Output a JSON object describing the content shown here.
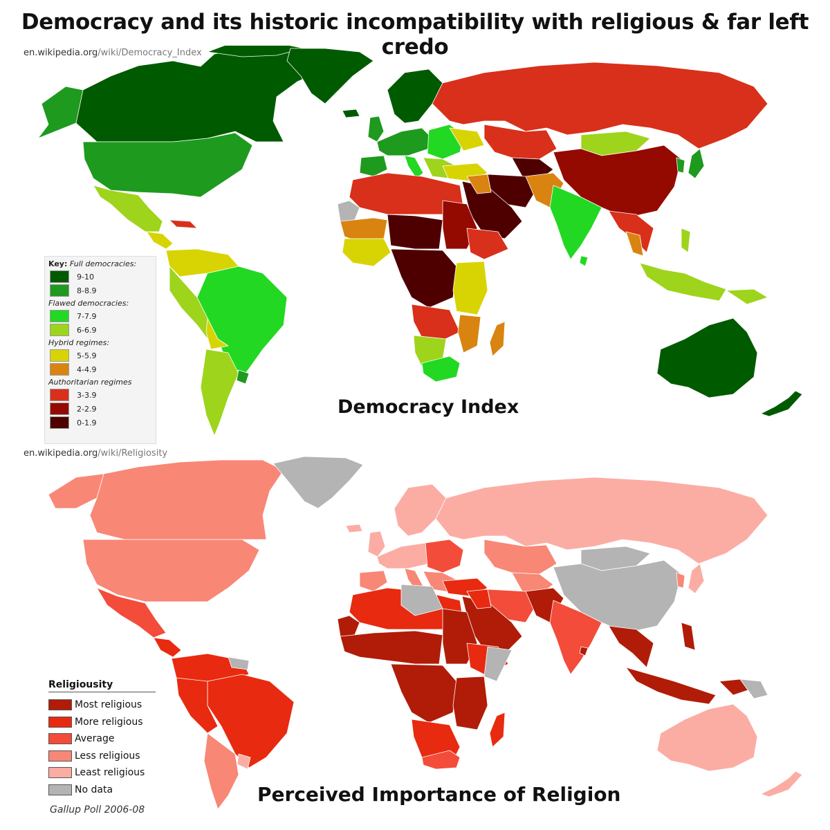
{
  "title": "Democracy and its historic incompatibility with religious & far left credo",
  "map1": {
    "source_domain": "en.wikipedia.org",
    "source_path": "/wiki/Democracy_Index",
    "label": "Democracy Index",
    "legend": {
      "key": "Key:",
      "groups": [
        {
          "name": "Full democracies:",
          "items": [
            {
              "label": "9-10",
              "color": "#005a00"
            },
            {
              "label": "8-8.9",
              "color": "#1e9a1e"
            }
          ]
        },
        {
          "name": "Flawed democracies:",
          "items": [
            {
              "label": "7-7.9",
              "color": "#22d822"
            },
            {
              "label": "6-6.9",
              "color": "#9ed41c"
            }
          ]
        },
        {
          "name": "Hybrid regimes:",
          "items": [
            {
              "label": "5-5.9",
              "color": "#d8d404"
            },
            {
              "label": "4-4.9",
              "color": "#d98410"
            }
          ]
        },
        {
          "name": "Authoritarian regimes",
          "items": [
            {
              "label": "3-3.9",
              "color": "#d8301a"
            },
            {
              "label": "2-2.9",
              "color": "#940a00"
            },
            {
              "label": "0-1.9",
              "color": "#4e0000"
            }
          ]
        }
      ]
    }
  },
  "map2": {
    "source_domain": "en.wikipedia.org",
    "source_path": "/wiki/Religiosity",
    "label": "Perceived Importance of Religion",
    "legend": {
      "title": "Religiousity",
      "items": [
        {
          "label": "Most religious",
          "color": "#b01c08"
        },
        {
          "label": "More religious",
          "color": "#e82a10"
        },
        {
          "label": "Average",
          "color": "#f34c3a"
        },
        {
          "label": "Less religious",
          "color": "#f88776"
        },
        {
          "label": "Least religious",
          "color": "#fbada4"
        },
        {
          "label": "No data",
          "color": "#b4b4b4"
        }
      ]
    },
    "credit": "Gallup Poll 2006-08"
  }
}
